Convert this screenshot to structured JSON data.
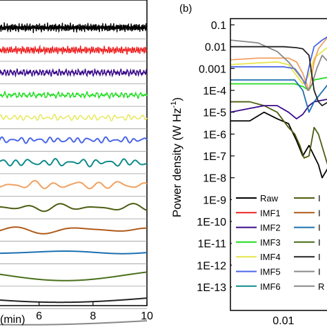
{
  "chart_data": [
    {
      "type": "line",
      "panel_label": "",
      "title": "",
      "xlabel": "(min)",
      "ylabel": "",
      "xlim": [
        4.5,
        10
      ],
      "xticks": [
        "6",
        "8",
        "10"
      ],
      "grid": false,
      "legend": false,
      "series": [
        {
          "color": "#000000",
          "offset": 0,
          "amplitude": 0.45,
          "dominant_period_min": 0.05
        },
        {
          "color": "#ee2222",
          "offset": 1,
          "amplitude": 0.4,
          "dominant_period_min": 0.08
        },
        {
          "color": "#3a0a8a",
          "offset": 2,
          "amplitude": 0.35,
          "dominant_period_min": 0.12
        },
        {
          "color": "#22dd22",
          "offset": 3,
          "amplitude": 0.3,
          "dominant_period_min": 0.18
        },
        {
          "color": "#e6e64d",
          "offset": 4,
          "amplitude": 0.35,
          "dominant_period_min": 0.25
        },
        {
          "color": "#4a66e8",
          "offset": 5,
          "amplitude": 0.35,
          "dominant_period_min": 0.35
        },
        {
          "color": "#0e8a8a",
          "offset": 6,
          "amplitude": 0.45,
          "dominant_period_min": 0.5
        },
        {
          "color": "#f0a060",
          "offset": 7,
          "amplitude": 0.5,
          "dominant_period_min": 0.8
        },
        {
          "color": "#4a5c10",
          "offset": 8,
          "amplitude": 0.45,
          "dominant_period_min": 1.3
        },
        {
          "color": "#b05a18",
          "offset": 9,
          "amplitude": 0.45,
          "dominant_period_min": 2.3
        },
        {
          "color": "#1a6fb0",
          "offset": 10,
          "amplitude": 0.25,
          "dominant_period_min": 5
        },
        {
          "color": "#4a6e1a",
          "offset": 11,
          "amplitude": 0.7,
          "dominant_period_min": 9
        },
        {
          "color": "#222222",
          "offset": 12,
          "amplitude": 0.6,
          "dominant_period_min": 14
        },
        {
          "color": "#888888",
          "offset": 13,
          "amplitude": 0.6,
          "dominant_period_min": 20
        }
      ]
    },
    {
      "type": "line",
      "panel_label": "(b)",
      "title": "",
      "xlabel": "",
      "ylabel": "Power density (W Hz",
      "ylabel_sup": "-1",
      "ylabel_end": ")",
      "xscale": "log",
      "yscale": "log",
      "xlim": [
        0.0015,
        0.05
      ],
      "ylim": [
        1e-13,
        0.3
      ],
      "xticks": [
        "0.01"
      ],
      "yticks": [
        "0.1",
        "0.01",
        "0.001",
        "1E-4",
        "1E-5",
        "1E-6",
        "1E-7",
        "1E-8",
        "1E-9",
        "1E-10",
        "1E-11",
        "1E-12",
        "1E-13"
      ],
      "grid": false,
      "legend_position": "bottom-left",
      "legend_col1": [
        {
          "name": "Raw",
          "color": "#000000"
        },
        {
          "name": "IMF1",
          "color": "#ee2222"
        },
        {
          "name": "IMF2",
          "color": "#3a0a8a"
        },
        {
          "name": "IMF3",
          "color": "#22dd22"
        },
        {
          "name": "IMF4",
          "color": "#e6e64d"
        },
        {
          "name": "IMF5",
          "color": "#4a66e8"
        },
        {
          "name": "IMF6",
          "color": "#0e8a8a"
        }
      ],
      "legend_col2": [
        {
          "name": "I",
          "color": "#4a5c10"
        },
        {
          "name": "I",
          "color": "#b05a18"
        },
        {
          "name": "I",
          "color": "#1a6fb0"
        },
        {
          "name": "I",
          "color": "#4a6e1a"
        },
        {
          "name": "I",
          "color": "#222222"
        },
        {
          "name": "I",
          "color": "#888888"
        },
        {
          "name": "R",
          "color": "#888888"
        }
      ],
      "series": [
        {
          "color": "#000000",
          "x": [
            0.0015,
            0.003,
            0.005,
            0.008,
            0.012,
            0.016,
            0.02,
            0.025,
            0.03,
            0.035,
            0.04,
            0.05
          ],
          "y": [
            4e-06,
            4e-06,
            1e-05,
            5e-06,
            3e-06,
            5e-07,
            1e-07,
            3e-07,
            1e-07,
            4e-08,
            1e-08,
            3e-08
          ]
        },
        {
          "color": "#4a5c10",
          "x": [
            0.0015,
            0.003,
            0.005,
            0.008,
            0.012,
            0.015,
            0.018,
            0.021,
            0.025,
            0.03,
            0.035,
            0.05
          ],
          "y": [
            3e-05,
            3e-05,
            2e-05,
            1e-05,
            2e-06,
            1e-06,
            3e-07,
            8e-08,
            1e-07,
            2e-06,
            1e-06,
            3e-08
          ]
        },
        {
          "color": "#3a0a8a",
          "x": [
            0.0015,
            0.003,
            0.005,
            0.008,
            0.012,
            0.016,
            0.02,
            0.025,
            0.03,
            0.05
          ],
          "y": [
            1e-05,
            1.5e-05,
            2e-05,
            2e-05,
            1e-05,
            5e-06,
            8e-06,
            2e-05,
            3e-05,
            4e-05
          ]
        },
        {
          "color": "#22dd22",
          "x": [
            0.0015,
            0.005,
            0.01,
            0.015,
            0.02,
            0.025,
            0.03,
            0.05
          ],
          "y": [
            0.0002,
            0.0002,
            0.0002,
            0.0002,
            0.00015,
            0.0001,
            0.0003,
            0.0004
          ]
        },
        {
          "color": "#1a6fb0",
          "x": [
            0.0015,
            0.005,
            0.01,
            0.015,
            0.02,
            0.025,
            0.03,
            0.05
          ],
          "y": [
            0.0003,
            0.0003,
            0.0003,
            0.0003,
            0.0001,
            1e-05,
            3e-05,
            0.0002
          ]
        },
        {
          "color": "#e6e64d",
          "x": [
            0.0015,
            0.004,
            0.008,
            0.012,
            0.015,
            0.02,
            0.025,
            0.03,
            0.05
          ],
          "y": [
            0.0015,
            0.0018,
            0.002,
            0.0015,
            0.0006,
            0.0002,
            0.0005,
            0.003,
            0.01
          ]
        },
        {
          "color": "#f0a060",
          "x": [
            0.0015,
            0.004,
            0.008,
            0.012,
            0.016,
            0.02,
            0.025,
            0.03,
            0.035,
            0.05
          ],
          "y": [
            0.0025,
            0.003,
            0.003,
            0.003,
            0.002,
            0.0006,
            0.0001,
            0.002,
            0.008,
            0.03
          ]
        },
        {
          "color": "#4a66e8",
          "x": [
            0.0015,
            0.005,
            0.01,
            0.015,
            0.018,
            0.022,
            0.026,
            0.03,
            0.04,
            0.05
          ],
          "y": [
            0.0012,
            0.0012,
            0.0012,
            0.001,
            0.0005,
            0.0002,
            0.002,
            0.01,
            0.02,
            0.03
          ]
        },
        {
          "color": "#888888",
          "x": [
            0.0015,
            0.004,
            0.008,
            0.012,
            0.016,
            0.02,
            0.024,
            0.028,
            0.033,
            0.04,
            0.05
          ],
          "y": [
            0.02,
            0.015,
            0.006,
            0.002,
            0.0007,
            0.0003,
            0.0001,
            0.0002,
            0.001,
            0.004,
            0.002
          ]
        },
        {
          "color": "#222222",
          "x": [
            0.0015,
            0.006,
            0.01,
            0.016,
            0.02,
            0.025,
            0.03,
            0.035,
            0.04,
            0.05
          ],
          "y": [
            0.01,
            0.01,
            0.01,
            0.009,
            0.008,
            0.004,
            0.0001,
            3e-05,
            2e-05,
            3e-05
          ]
        }
      ]
    }
  ]
}
